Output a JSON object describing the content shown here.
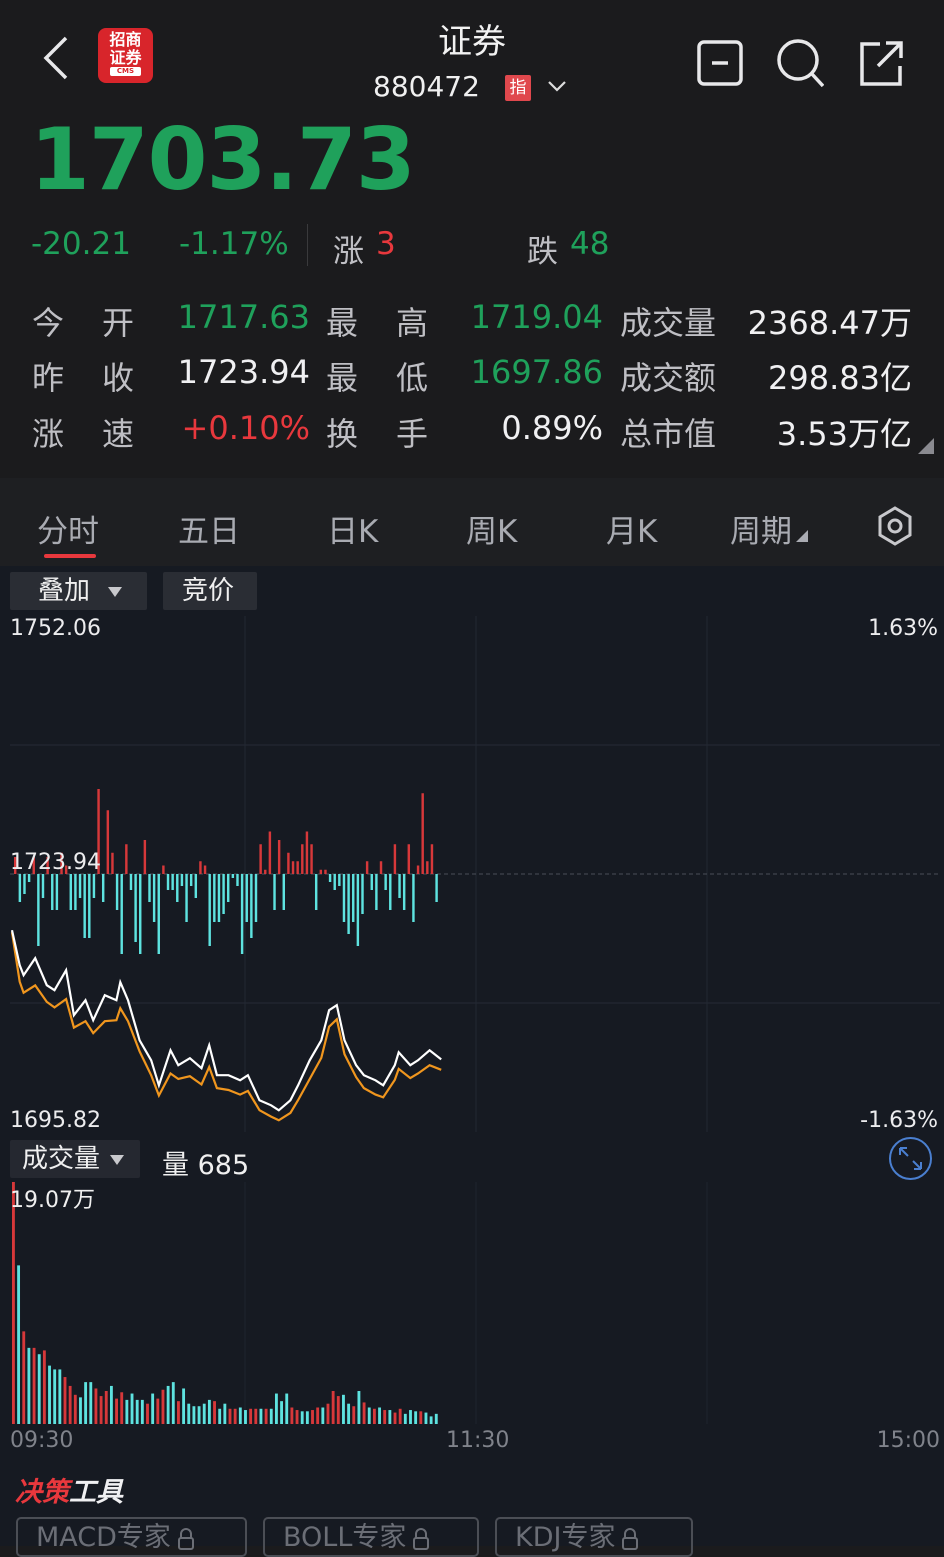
{
  "header": {
    "title": "证券",
    "code": "880472",
    "badge": "指",
    "icons": [
      "back-chevron-icon",
      "app-logo",
      "minus-square-icon",
      "search-icon",
      "share-external-icon",
      "chevron-down-icon"
    ],
    "logo_text": "招商证券",
    "logo_sub": "CMS"
  },
  "quote": {
    "price": "1703.73",
    "change": "-20.21",
    "change_pct": "-1.17%",
    "up_label": "涨",
    "up_count": "3",
    "down_label": "跌",
    "down_count": "48"
  },
  "stats": [
    [
      {
        "label1": "今",
        "label2": "开",
        "value": "1717.63",
        "color": "green"
      },
      {
        "label1": "最",
        "label2": "高",
        "value": "1719.04",
        "color": "green"
      },
      {
        "label": "成交量",
        "value": "2368.47万",
        "color": "white"
      }
    ],
    [
      {
        "label1": "昨",
        "label2": "收",
        "value": "1723.94",
        "color": "white"
      },
      {
        "label1": "最",
        "label2": "低",
        "value": "1697.86",
        "color": "green"
      },
      {
        "label": "成交额",
        "value": "298.83亿",
        "color": "white"
      }
    ],
    [
      {
        "label1": "涨",
        "label2": "速",
        "value": "+0.10%",
        "color": "red"
      },
      {
        "label1": "换",
        "label2": "手",
        "value": "0.89%",
        "color": "white"
      },
      {
        "label": "总市值",
        "value": "3.53万亿",
        "color": "white"
      }
    ]
  ],
  "tabs": [
    "分时",
    "五日",
    "日K",
    "周K",
    "月K",
    "周期"
  ],
  "active_tab": "分时",
  "chart_controls": {
    "overlay": "叠加",
    "auction": "竞价",
    "volume_select": "成交量",
    "volume_readout": "量 685"
  },
  "colors": {
    "up": "#e8383d",
    "down": "#1fa15b",
    "price_line": "#ffffff",
    "avg_line": "#f0961e",
    "down_bar": "#5ee3e0",
    "up_bar": "#d7383a",
    "expand": "#4a7fd0"
  },
  "chart_data": {
    "type": "line",
    "y_left_ticks": [
      "1752.06",
      "1723.94",
      "1695.82"
    ],
    "y_right_ticks": [
      "1.63%",
      "-1.63%"
    ],
    "ylim": [
      1695.82,
      1752.06
    ],
    "prev_close": 1723.94,
    "x_ticks": [
      "09:30",
      "11:30",
      "15:00"
    ],
    "x": [
      "09:30",
      "09:32",
      "09:33",
      "09:36",
      "09:39",
      "09:41",
      "09:44",
      "09:46",
      "09:49",
      "09:51",
      "09:54",
      "09:57",
      "09:58",
      "10:00",
      "10:03",
      "10:06",
      "10:08",
      "10:11",
      "10:13",
      "10:16",
      "10:19",
      "10:21",
      "10:23",
      "10:26",
      "10:29",
      "10:31",
      "10:34",
      "10:37",
      "10:39",
      "10:42",
      "10:44",
      "10:47",
      "10:50",
      "10:52",
      "10:54",
      "10:56",
      "10:59",
      "11:01",
      "11:04",
      "11:06",
      "11:09",
      "11:10",
      "11:13",
      "11:15",
      "11:18",
      "11:21"
    ],
    "price": [
      1717.82,
      1714.0,
      1712.91,
      1714.76,
      1711.82,
      1711.27,
      1713.46,
      1708.55,
      1710.18,
      1708.0,
      1710.73,
      1710.18,
      1712.15,
      1710.18,
      1705.82,
      1703.64,
      1700.91,
      1704.73,
      1703.1,
      1703.86,
      1702.77,
      1705.28,
      1702.01,
      1702.01,
      1701.46,
      1702.01,
      1699.28,
      1698.73,
      1698.19,
      1699.28,
      1700.91,
      1703.64,
      1705.82,
      1709.09,
      1709.64,
      1705.82,
      1703.1,
      1702.01,
      1701.46,
      1700.91,
      1703.1,
      1704.51,
      1703.1,
      1703.64,
      1704.73,
      1703.73
    ],
    "avg_price": [
      1717.6,
      1712.2,
      1711.0,
      1711.8,
      1710.0,
      1709.4,
      1710.3,
      1707.2,
      1707.9,
      1706.6,
      1707.9,
      1708.0,
      1709.3,
      1707.9,
      1704.6,
      1702.0,
      1699.8,
      1702.2,
      1701.6,
      1701.9,
      1701.0,
      1702.9,
      1700.6,
      1700.4,
      1699.9,
      1700.3,
      1698.2,
      1697.5,
      1697.1,
      1697.9,
      1699.3,
      1701.6,
      1703.9,
      1707.3,
      1708.1,
      1704.3,
      1701.8,
      1700.6,
      1699.9,
      1699.6,
      1701.5,
      1702.7,
      1701.7,
      1702.2,
      1703.1,
      1702.6
    ],
    "breadth": [
      0.2,
      -0.35,
      -0.25,
      -0.1,
      0.2,
      -0.9,
      -0.3,
      0.2,
      -0.45,
      -0.45,
      0.25,
      0.1,
      -0.45,
      -0.45,
      -0.3,
      -0.8,
      -0.8,
      -0.3,
      1.0,
      -0.35,
      0.75,
      0.25,
      -0.45,
      -1.0,
      0.35,
      -0.2,
      -0.85,
      -1.0,
      0.4,
      -0.35,
      -0.6,
      -1.0,
      0.1,
      -0.2,
      -0.2,
      -0.35,
      -0.15,
      -0.6,
      -0.15,
      -0.3,
      0.15,
      0.1,
      -0.9,
      -0.6,
      -0.6,
      -0.5,
      -0.35,
      -0.05,
      -0.15,
      -1.0,
      -0.6,
      -0.8,
      -0.6,
      0.35,
      0.05,
      0.5,
      -0.45,
      0.4,
      -0.45,
      0.25,
      0.15,
      0.15,
      0.35,
      0.5,
      0.35,
      -0.45,
      0.05,
      0.05,
      -0.1,
      -0.2,
      -0.15,
      -0.6,
      -0.75,
      -0.6,
      -0.9,
      -0.5,
      0.15,
      -0.2,
      -0.45,
      0.15,
      -0.2,
      -0.45,
      0.35,
      -0.3,
      -0.45,
      0.35,
      -0.6,
      0.1,
      0.95,
      0.15,
      0.35,
      -0.35
    ]
  },
  "volume_chart": {
    "type": "bar",
    "max_label": "19.07万",
    "ylim": [
      0,
      19.07
    ],
    "unit": "万",
    "values": [
      19.07,
      12.5,
      7.3,
      6.0,
      6.0,
      5.5,
      5.8,
      4.6,
      4.3,
      4.3,
      3.7,
      3.0,
      2.3,
      2.1,
      3.3,
      3.3,
      2.8,
      2.2,
      2.6,
      3.0,
      2.0,
      2.5,
      1.9,
      2.4,
      1.9,
      1.9,
      1.6,
      2.4,
      2.0,
      2.7,
      3.0,
      3.3,
      1.8,
      2.8,
      1.6,
      1.4,
      1.4,
      1.6,
      1.9,
      1.8,
      1.2,
      1.6,
      1.2,
      1.2,
      1.3,
      1.1,
      1.2,
      1.2,
      1.2,
      1.2,
      1.2,
      2.4,
      1.8,
      2.4,
      1.3,
      1.1,
      1.0,
      1.0,
      1.1,
      1.3,
      1.3,
      1.6,
      2.6,
      2.2,
      2.3,
      1.6,
      1.4,
      2.6,
      1.7,
      1.3,
      1.2,
      1.3,
      1.1,
      1.1,
      0.9,
      1.2,
      0.8,
      1.1,
      1.0,
      1.0,
      0.9,
      0.6,
      0.8
    ],
    "up": [
      1,
      0,
      1,
      0,
      1,
      0,
      1,
      0,
      0,
      0,
      1,
      1,
      1,
      0,
      0,
      0,
      1,
      1,
      1,
      0,
      1,
      1,
      0,
      0,
      0,
      0,
      1,
      0,
      1,
      1,
      0,
      0,
      1,
      0,
      0,
      0,
      0,
      0,
      0,
      1,
      0,
      0,
      1,
      1,
      0,
      0,
      1,
      1,
      0,
      1,
      0,
      0,
      0,
      0,
      1,
      1,
      0,
      0,
      1,
      1,
      0,
      1,
      1,
      1,
      0,
      0,
      1,
      0,
      1,
      0,
      1,
      0,
      1,
      0,
      1,
      1,
      0,
      0,
      0,
      1,
      0,
      0,
      0
    ]
  },
  "tools": {
    "title_red": "决策",
    "title_white": "工具",
    "buttons": [
      "MACD专家",
      "BOLL专家",
      "KDJ专家"
    ]
  }
}
